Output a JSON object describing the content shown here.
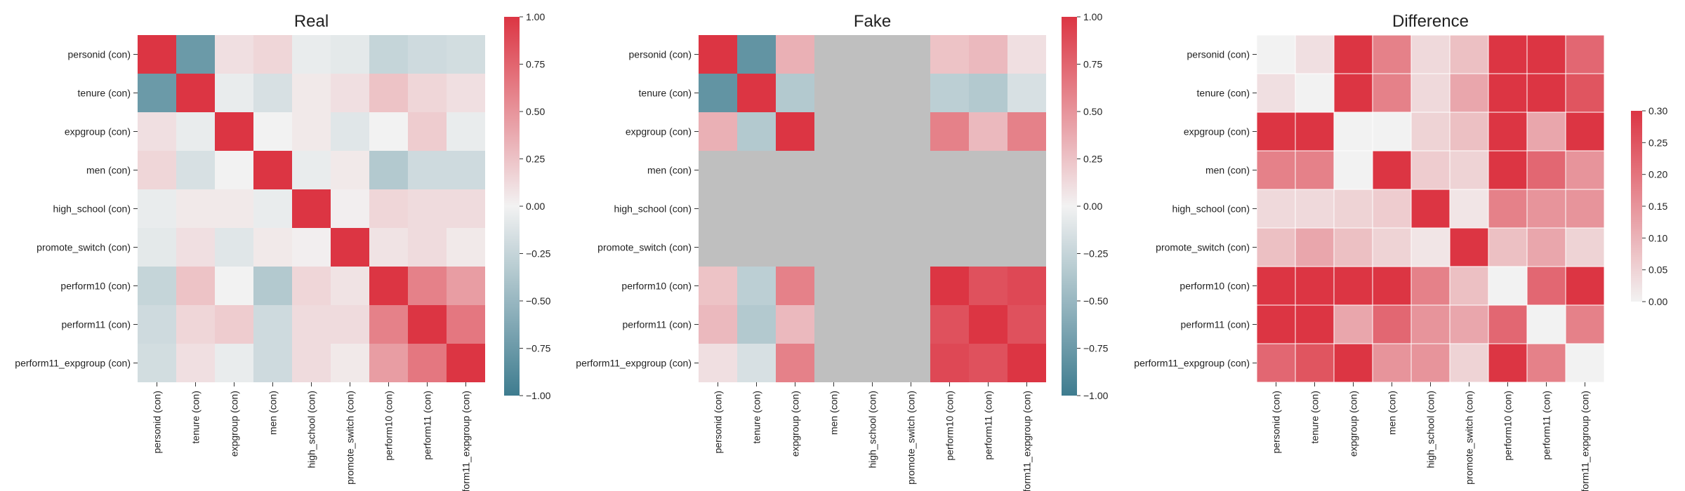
{
  "chart_data": [
    {
      "type": "heatmap",
      "title": "Real",
      "categories": [
        "personid (con)",
        "tenure (con)",
        "expgroup (con)",
        "men (con)",
        "high_school (con)",
        "promote_switch (con)",
        "perform10 (con)",
        "perform11 (con)",
        "perform11_expgroup (con)"
      ],
      "values": [
        [
          1.0,
          -0.75,
          0.1,
          0.15,
          -0.05,
          -0.08,
          -0.25,
          -0.2,
          -0.18
        ],
        [
          -0.75,
          1.0,
          -0.05,
          -0.15,
          0.05,
          0.1,
          0.25,
          0.15,
          0.1
        ],
        [
          0.1,
          -0.05,
          1.0,
          0.0,
          0.05,
          -0.1,
          0.0,
          0.2,
          -0.05
        ],
        [
          0.15,
          -0.15,
          0.0,
          1.0,
          -0.05,
          0.05,
          -0.35,
          -0.2,
          -0.2
        ],
        [
          -0.05,
          0.05,
          0.05,
          -0.05,
          1.0,
          0.02,
          0.15,
          0.12,
          0.12
        ],
        [
          -0.08,
          0.1,
          -0.1,
          0.05,
          0.02,
          1.0,
          0.08,
          0.12,
          0.05
        ],
        [
          -0.25,
          0.25,
          0.0,
          -0.35,
          0.15,
          0.08,
          1.0,
          0.6,
          0.45
        ],
        [
          -0.2,
          0.15,
          0.2,
          -0.2,
          0.12,
          0.12,
          0.6,
          1.0,
          0.65
        ],
        [
          -0.18,
          0.1,
          -0.05,
          -0.2,
          0.12,
          0.05,
          0.45,
          0.65,
          1.0
        ]
      ],
      "colorbar": {
        "min": -1.0,
        "max": 1.0,
        "ticks": [
          "1.00",
          "0.75",
          "0.50",
          "0.25",
          "0.00",
          "−0.25",
          "−0.50",
          "−0.75",
          "−1.00"
        ]
      },
      "colors": {
        "negative": "#3e7c8f",
        "neutral": "#f2f2f2",
        "positive": "#dc3543"
      }
    },
    {
      "type": "heatmap",
      "title": "Fake",
      "categories": [
        "personid (con)",
        "tenure (con)",
        "expgroup (con)",
        "men (con)",
        "high_school (con)",
        "promote_switch (con)",
        "perform10 (con)",
        "perform11 (con)",
        "perform11_expgroup (con)"
      ],
      "values": [
        [
          1.0,
          -0.8,
          0.35,
          null,
          null,
          null,
          0.25,
          0.3,
          0.1
        ],
        [
          -0.8,
          1.0,
          -0.35,
          null,
          null,
          null,
          -0.3,
          -0.35,
          -0.15
        ],
        [
          0.35,
          -0.35,
          1.0,
          null,
          null,
          null,
          0.6,
          0.3,
          0.6
        ],
        [
          null,
          null,
          null,
          null,
          null,
          null,
          null,
          null,
          null
        ],
        [
          null,
          null,
          null,
          null,
          null,
          null,
          null,
          null,
          null
        ],
        [
          null,
          null,
          null,
          null,
          null,
          null,
          null,
          null,
          null
        ],
        [
          0.25,
          -0.3,
          0.6,
          null,
          null,
          null,
          1.0,
          0.85,
          0.9
        ],
        [
          0.3,
          -0.35,
          0.3,
          null,
          null,
          null,
          0.85,
          1.0,
          0.85
        ],
        [
          0.1,
          -0.15,
          0.6,
          null,
          null,
          null,
          0.9,
          0.85,
          1.0
        ]
      ],
      "missing_color": "#bfbfbf",
      "colorbar": {
        "min": -1.0,
        "max": 1.0,
        "ticks": [
          "1.00",
          "0.75",
          "0.50",
          "0.25",
          "0.00",
          "−0.25",
          "−0.50",
          "−0.75",
          "−1.00"
        ]
      },
      "colors": {
        "negative": "#3e7c8f",
        "neutral": "#f2f2f2",
        "positive": "#dc3543"
      }
    },
    {
      "type": "heatmap",
      "title": "Difference",
      "categories": [
        "personid (con)",
        "tenure (con)",
        "expgroup (con)",
        "men (con)",
        "high_school (con)",
        "promote_switch (con)",
        "perform10 (con)",
        "perform11 (con)",
        "perform11_expgroup (con)"
      ],
      "values": [
        [
          0.0,
          0.03,
          0.3,
          0.18,
          0.04,
          0.08,
          0.3,
          0.3,
          0.22
        ],
        [
          0.03,
          0.0,
          0.3,
          0.18,
          0.04,
          0.12,
          0.3,
          0.3,
          0.25
        ],
        [
          0.3,
          0.3,
          0.0,
          0.0,
          0.05,
          0.08,
          0.3,
          0.12,
          0.3
        ],
        [
          0.18,
          0.18,
          0.0,
          0.3,
          0.06,
          0.05,
          0.3,
          0.22,
          0.15
        ],
        [
          0.04,
          0.04,
          0.05,
          0.06,
          0.3,
          0.02,
          0.18,
          0.15,
          0.15
        ],
        [
          0.08,
          0.12,
          0.08,
          0.05,
          0.02,
          0.3,
          0.08,
          0.12,
          0.05
        ],
        [
          0.3,
          0.3,
          0.3,
          0.3,
          0.18,
          0.08,
          0.0,
          0.22,
          0.3
        ],
        [
          0.3,
          0.3,
          0.12,
          0.22,
          0.15,
          0.12,
          0.22,
          0.0,
          0.18
        ],
        [
          0.22,
          0.25,
          0.3,
          0.15,
          0.15,
          0.05,
          0.3,
          0.18,
          0.0
        ]
      ],
      "colorbar": {
        "min": 0.0,
        "max": 0.3,
        "ticks": [
          "0.30",
          "0.25",
          "0.20",
          "0.15",
          "0.10",
          "0.05",
          "0.00"
        ]
      },
      "colors": {
        "neutral": "#f2f2f2",
        "positive": "#dc3543"
      }
    }
  ]
}
